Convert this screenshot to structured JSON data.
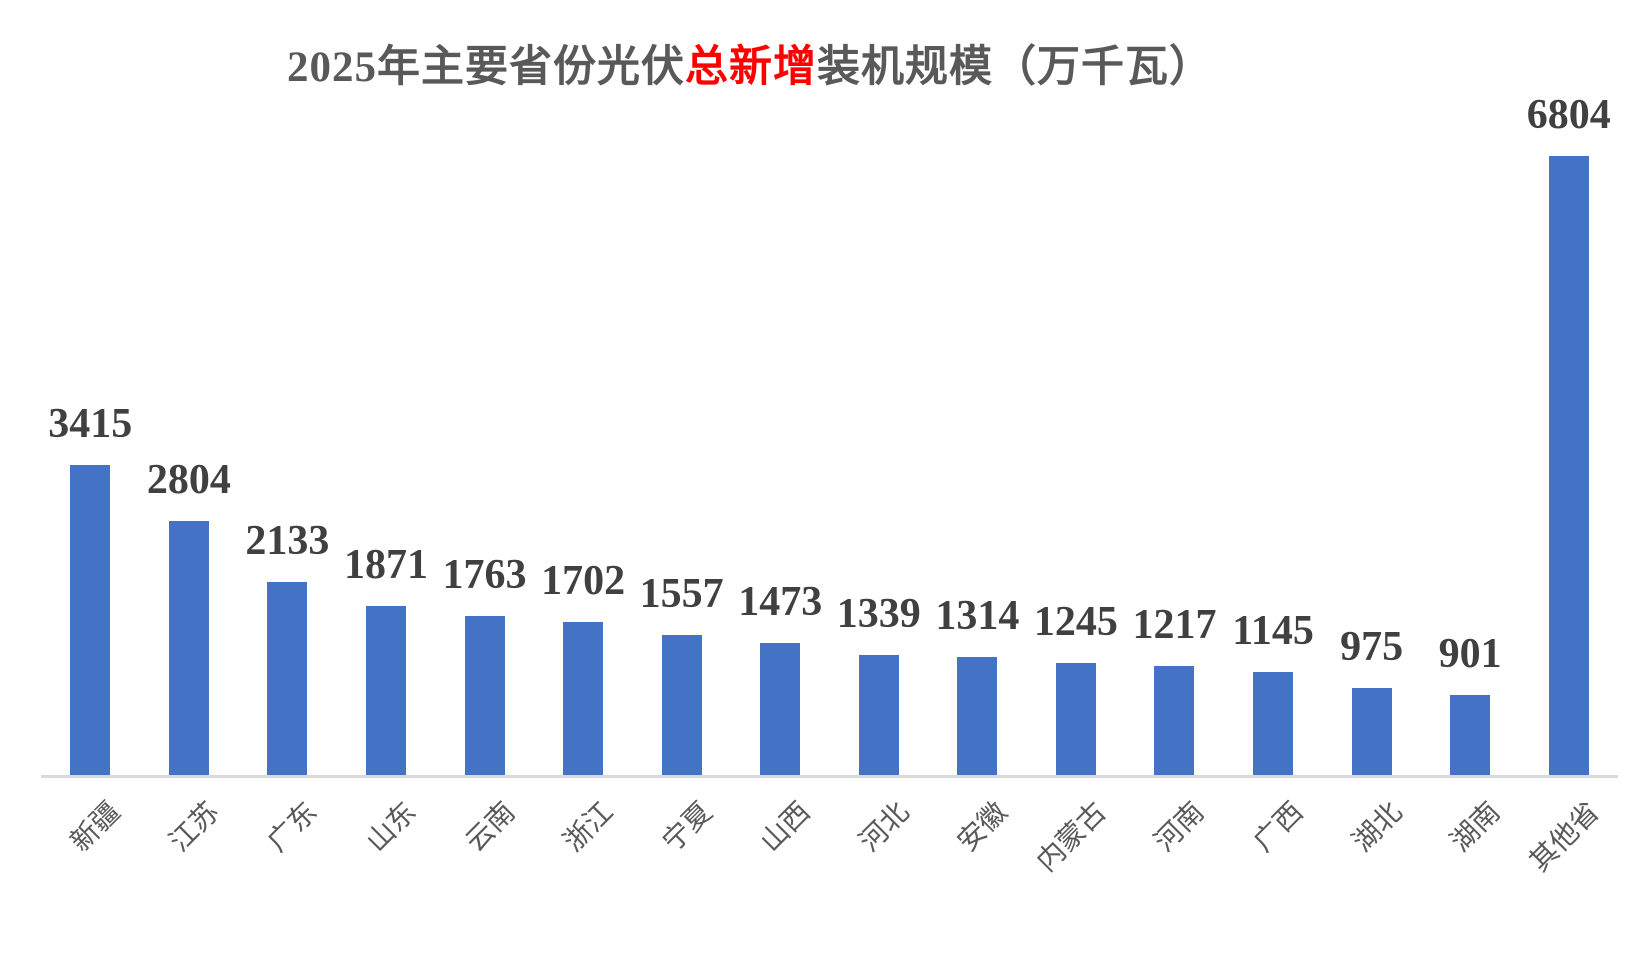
{
  "chart_data": {
    "type": "bar",
    "title": {
      "prefix": "2025年主要省份光伏",
      "highlight": "总新增",
      "suffix": "装机规模（万千瓦）"
    },
    "categories": [
      "新疆",
      "江苏",
      "广东",
      "山东",
      "云南",
      "浙江",
      "宁夏",
      "山西",
      "河北",
      "安徽",
      "内蒙古",
      "河南",
      "广西",
      "湖北",
      "湖南",
      "其他省"
    ],
    "values": [
      3415,
      2804,
      2133,
      1871,
      1763,
      1702,
      1557,
      1473,
      1339,
      1314,
      1245,
      1217,
      1145,
      975,
      901,
      6804
    ],
    "ylim": [
      0,
      6804
    ],
    "xlabel": "",
    "ylabel": "",
    "grid": false,
    "legend": false,
    "data_labels_visible": true,
    "category_label_rotation_deg": 45,
    "colors": {
      "bar": "#4472C4",
      "title_text": "#595959",
      "title_highlight": "#FF0000",
      "value_label": "#404040",
      "category_label": "#595959",
      "axis_line": "#D9D9D9",
      "background": "#FFFFFF"
    }
  }
}
